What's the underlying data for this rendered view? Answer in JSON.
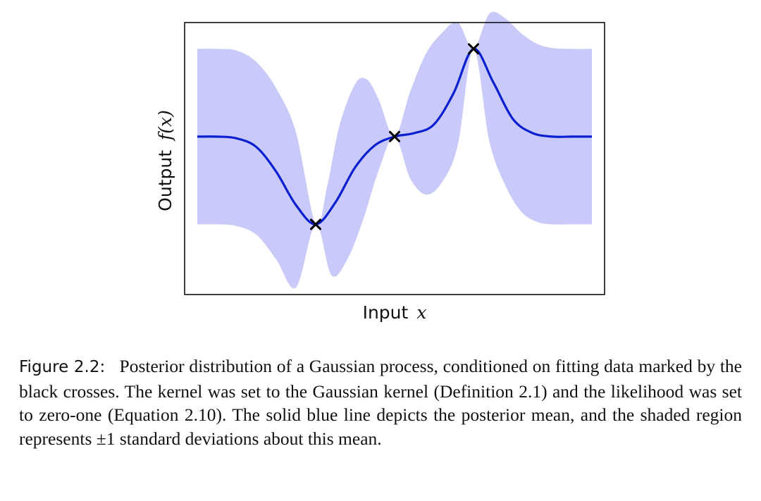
{
  "figure": {
    "ylabel_word": "Output",
    "ylabel_var": "f(x)",
    "xlabel_word": "Input",
    "xlabel_var": "x"
  },
  "caption": {
    "label": "Figure 2.2:",
    "text": "Posterior distribution of a Gaussian process, conditioned on fitting data marked by the black crosses. The kernel was set to the Gaussian kernel (Definition 2.1) and the likelihood was set to zero-one (Equation 2.10). The solid blue line depicts the posterior mean, and the shaded region represents ±1 standard deviations about this mean."
  },
  "colors": {
    "mean_line": "#0a1fd0",
    "band_fill": "#c9c9fa",
    "crosses": "#000000"
  },
  "chart_data": {
    "type": "line",
    "grid": false,
    "ticks": false,
    "xlabel": "Input x",
    "ylabel": "Output f(x)",
    "xlim": [
      0.0,
      1.0
    ],
    "ylim": [
      -1.8,
      1.3
    ],
    "observations": {
      "x": [
        0.3,
        0.5,
        0.7
      ],
      "y": [
        -1.0,
        0.0,
        1.0
      ]
    },
    "series": [
      {
        "kind": "mean",
        "x": [
          0.0,
          0.05,
          0.1,
          0.15,
          0.2,
          0.25,
          0.3,
          0.35,
          0.4,
          0.45,
          0.5,
          0.55,
          0.6,
          0.65,
          0.7,
          0.75,
          0.8,
          0.85,
          0.9,
          0.95,
          1.0
        ],
        "values": [
          0.0,
          0.0,
          -0.02,
          -0.12,
          -0.4,
          -0.78,
          -1.0,
          -0.75,
          -0.35,
          -0.1,
          0.0,
          0.04,
          0.14,
          0.5,
          1.0,
          0.62,
          0.2,
          0.04,
          0.0,
          0.0,
          0.0
        ]
      },
      {
        "kind": "band_upper",
        "x": [
          0.0,
          0.05,
          0.1,
          0.15,
          0.2,
          0.25,
          0.3,
          0.33,
          0.36,
          0.4,
          0.43,
          0.46,
          0.5,
          0.54,
          0.58,
          0.62,
          0.66,
          0.7,
          0.74,
          0.78,
          0.82,
          0.86,
          0.9,
          0.95,
          1.0
        ],
        "values": [
          1.0,
          1.0,
          0.98,
          0.85,
          0.55,
          0.05,
          -1.0,
          -0.55,
          0.12,
          0.6,
          0.65,
          0.42,
          0.0,
          0.52,
          0.95,
          1.18,
          1.3,
          1.0,
          1.4,
          1.35,
          1.18,
          1.06,
          1.01,
          1.0,
          1.0
        ]
      },
      {
        "kind": "band_lower",
        "x": [
          0.0,
          0.05,
          0.1,
          0.15,
          0.2,
          0.25,
          0.3,
          0.34,
          0.38,
          0.42,
          0.46,
          0.5,
          0.54,
          0.58,
          0.62,
          0.66,
          0.7,
          0.74,
          0.78,
          0.82,
          0.86,
          0.9,
          0.95,
          1.0
        ],
        "values": [
          -1.0,
          -1.0,
          -1.02,
          -1.12,
          -1.4,
          -1.72,
          -1.0,
          -1.58,
          -1.4,
          -0.95,
          -0.38,
          0.0,
          -0.48,
          -0.66,
          -0.52,
          -0.1,
          1.0,
          -0.05,
          -0.55,
          -0.85,
          -0.97,
          -1.0,
          -1.0,
          -1.0
        ]
      }
    ]
  }
}
